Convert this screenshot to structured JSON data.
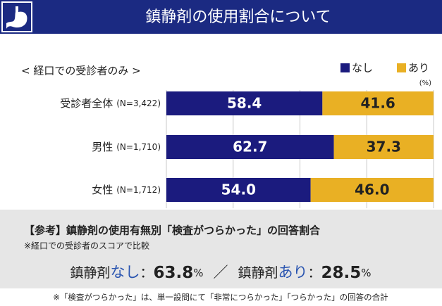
{
  "header": {
    "title": "鎮静剤の使用割合について",
    "subtitle": "< 経口での受診者のみ >"
  },
  "chart_data": {
    "type": "bar",
    "orientation": "horizontal",
    "stacked": true,
    "categories": [
      "受診者全体",
      "男性",
      "女性"
    ],
    "category_notes": [
      "(N=3,422)",
      "(N=1,710)",
      "(N=1,712)"
    ],
    "series": [
      {
        "name": "なし",
        "color": "#1b1b7e",
        "values": [
          58.4,
          62.7,
          54.0
        ],
        "value_labels": [
          "58.4",
          "62.7",
          "54.0"
        ]
      },
      {
        "name": "あり",
        "color": "#e9b024",
        "values": [
          41.6,
          37.3,
          46.0
        ],
        "value_labels": [
          "41.6",
          "37.3",
          "46.0"
        ]
      }
    ],
    "unit": "(%)",
    "xlim": [
      0,
      100
    ],
    "xticks": [
      0,
      25,
      50,
      75,
      100
    ],
    "show_tick_labels": false,
    "grid": true,
    "legend": "top-right"
  },
  "reference": {
    "title": "【参考】鎮静剤の使用有無別「検査がつらかった」の回答割合",
    "note": "※経口での受診者のスコアで比較",
    "items": [
      {
        "prefix": "鎮静剤",
        "label": "なし",
        "colon": "：",
        "value": 63.8,
        "unit": "%"
      },
      {
        "prefix": "鎮静剤",
        "label": "あり",
        "colon": "：",
        "value": 28.5,
        "unit": "%"
      }
    ],
    "separator": "／"
  },
  "footnote": "※「検査がつらかった」は、単一設問にて「非常につらかった」「つらかった」の回答の合計"
}
